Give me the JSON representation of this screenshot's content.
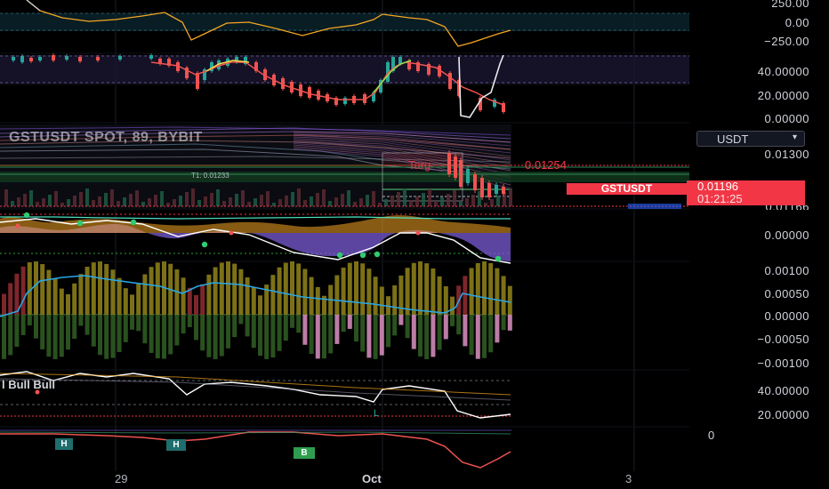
{
  "axis": {
    "pane1": [
      "250.00",
      "0.00",
      "−250.00"
    ],
    "pane2": [
      "40.00000",
      "20.00000",
      "0.00000"
    ],
    "main": [
      "0.01300"
    ],
    "pane4": [
      "0.00000"
    ],
    "pane5": [
      "0.00100",
      "0.00050",
      "0.00000",
      "−0.00050",
      "−0.00100"
    ],
    "pane6": [
      "40.00000",
      "20.00000"
    ],
    "pane7": [
      "0"
    ]
  },
  "currency": {
    "label": "USDT",
    "icon": "chevron-down-icon"
  },
  "symbol_tag": "GSTUSDT",
  "last_price": {
    "value": "0.01196",
    "countdown": "01:21:25"
  },
  "hidden_price": "0.01166",
  "chart_title": "GSTUSDT SPOT, 89, BYBIT",
  "annotations": {
    "target_label": "Targ",
    "target_value": "0.01254",
    "t1": "T1: 0.01233"
  },
  "pane6_legend": "l Bull Bull",
  "markers": {
    "h1": "H",
    "h2": "H",
    "b": "B",
    "l": "L"
  },
  "time_axis": [
    "29",
    "Oct",
    "3"
  ],
  "colors": {
    "background": "#000000",
    "up": "#26a69a",
    "down": "#ef5350",
    "accent_red": "#f23645",
    "orange": "#f5a623",
    "purple": "#7b5cd6",
    "olive": "#8a7d1a"
  }
}
